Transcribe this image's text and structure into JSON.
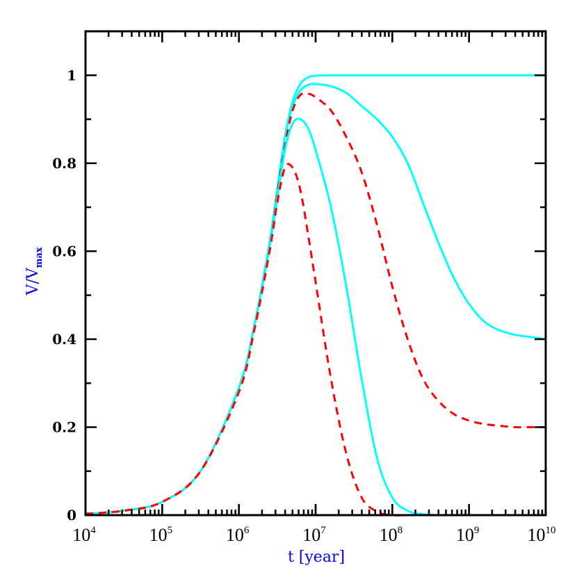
{
  "chart_data": {
    "type": "line",
    "title": "",
    "xlabel": "t [year]",
    "ylabel": "V/V_max",
    "ylabel_main": "V/V",
    "ylabel_sub": "max",
    "xscale": "log",
    "xlim": [
      10000,
      10000000000
    ],
    "ylim": [
      0,
      1.1
    ],
    "grid": false,
    "legend": null,
    "x_ticks": [
      {
        "base": "10",
        "exp": "4"
      },
      {
        "base": "10",
        "exp": "5"
      },
      {
        "base": "10",
        "exp": "6"
      },
      {
        "base": "10",
        "exp": "7"
      },
      {
        "base": "10",
        "exp": "8"
      },
      {
        "base": "10",
        "exp": "9"
      },
      {
        "base": "10",
        "exp": "10"
      }
    ],
    "y_ticks": [
      "0",
      "0.2",
      "0.4",
      "0.6",
      "0.8",
      "1"
    ],
    "colors": {
      "solid": "#00ffff",
      "dashed": "#ff0000",
      "axis": "#000000",
      "label": "#0000ee"
    },
    "log10_t": [
      4.0,
      4.5,
      5.0,
      5.5,
      6.0,
      6.2,
      6.4,
      6.5,
      6.6,
      6.7,
      6.8,
      6.9,
      7.0,
      7.2,
      7.4,
      7.6,
      7.8,
      8.0,
      8.2,
      8.4,
      8.6,
      8.8,
      9.0,
      9.2,
      9.4,
      9.6,
      9.8,
      10.0
    ],
    "series": [
      {
        "name": "solid-plateau",
        "style": "solid",
        "color": "#00ffff",
        "values": [
          0.003,
          0.01,
          0.03,
          0.1,
          0.29,
          0.43,
          0.62,
          0.74,
          0.86,
          0.94,
          0.98,
          0.995,
          0.999,
          1.0,
          1.0,
          1.0,
          1.0,
          1.0,
          1.0,
          1.0,
          1.0,
          1.0,
          1.0,
          1.0,
          1.0,
          1.0,
          1.0,
          1.0
        ]
      },
      {
        "name": "solid-slow-decay",
        "style": "solid",
        "color": "#00ffff",
        "values": [
          0.003,
          0.01,
          0.03,
          0.1,
          0.29,
          0.43,
          0.62,
          0.74,
          0.86,
          0.93,
          0.965,
          0.978,
          0.98,
          0.975,
          0.96,
          0.93,
          0.9,
          0.86,
          0.8,
          0.71,
          0.62,
          0.54,
          0.48,
          0.44,
          0.42,
          0.41,
          0.405,
          0.4
        ]
      },
      {
        "name": "dashed-mid-decay",
        "style": "dashed",
        "color": "#ff0000",
        "values": [
          0.003,
          0.01,
          0.03,
          0.1,
          0.29,
          0.43,
          0.61,
          0.73,
          0.84,
          0.92,
          0.955,
          0.958,
          0.95,
          0.92,
          0.86,
          0.78,
          0.66,
          0.52,
          0.4,
          0.31,
          0.26,
          0.23,
          0.215,
          0.207,
          0.203,
          0.2,
          0.2,
          0.2
        ]
      },
      {
        "name": "solid-fast-decay",
        "style": "solid",
        "color": "#00ffff",
        "values": [
          0.003,
          0.01,
          0.03,
          0.1,
          0.29,
          0.43,
          0.61,
          0.72,
          0.83,
          0.89,
          0.9,
          0.88,
          0.83,
          0.7,
          0.52,
          0.31,
          0.13,
          0.04,
          0.01,
          0.002,
          0.0,
          0.0,
          0.0,
          0.0,
          0.0,
          0.0,
          0.0,
          0.0
        ]
      },
      {
        "name": "dashed-fast-decay",
        "style": "dashed",
        "color": "#ff0000",
        "values": [
          0.003,
          0.01,
          0.03,
          0.1,
          0.28,
          0.42,
          0.6,
          0.71,
          0.79,
          0.79,
          0.74,
          0.64,
          0.53,
          0.31,
          0.14,
          0.04,
          0.008,
          0.0,
          0.0,
          0.0,
          0.0,
          0.0,
          0.0,
          0.0,
          0.0,
          0.0,
          0.0,
          0.0
        ]
      }
    ]
  }
}
